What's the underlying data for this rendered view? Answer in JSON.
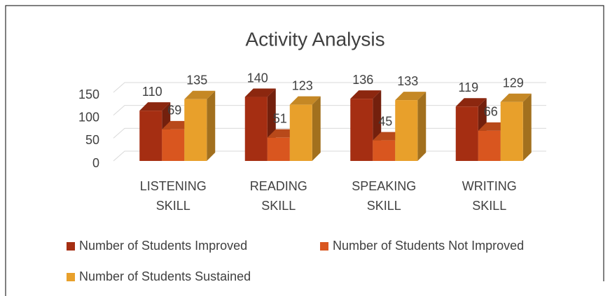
{
  "chart_data": {
    "type": "bar3d",
    "title": "Activity Analysis",
    "categories": [
      "LISTENING SKILL",
      "READING SKILL",
      "SPEAKING SKILL",
      "WRITING SKILL"
    ],
    "series": [
      {
        "name": "Number of Students Improved",
        "color": "#a52e12",
        "values": [
          110,
          140,
          136,
          119
        ]
      },
      {
        "name": "Number of Students Not Improved",
        "color": "#d9561f",
        "values": [
          69,
          51,
          45,
          66
        ]
      },
      {
        "name": "Number of Students Sustained",
        "color": "#e8a02b",
        "values": [
          135,
          123,
          133,
          129
        ]
      }
    ],
    "ylim": [
      0,
      150
    ],
    "yticks": [
      0,
      50,
      100,
      150
    ],
    "grid": true
  }
}
